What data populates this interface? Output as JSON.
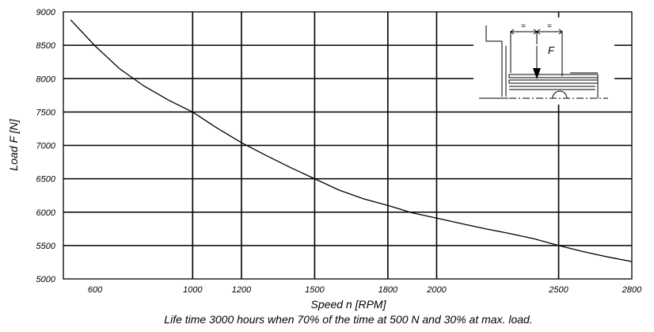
{
  "chart_data": {
    "type": "line",
    "xlabel": "Speed n [RPM]",
    "ylabel": "Load F [N]",
    "caption": "Life time 3000 hours when 70% of the time at 500 N and 30% at max. load.",
    "xlim": [
      470,
      2800
    ],
    "ylim": [
      5000,
      9000
    ],
    "x_ticks": [
      600,
      1000,
      1200,
      1500,
      1800,
      2000,
      2500,
      2800
    ],
    "x_tick_labels": [
      "600",
      "1000",
      "1200",
      "1500",
      "1800",
      "2000",
      "2500",
      "2800"
    ],
    "y_ticks": [
      5000,
      5500,
      6000,
      6500,
      7000,
      7500,
      8000,
      8500,
      9000
    ],
    "y_tick_labels": [
      "5000",
      "5500",
      "6000",
      "6500",
      "7000",
      "7500",
      "8000",
      "8500",
      "9000"
    ],
    "grid": true,
    "series": [
      {
        "x": [
          500,
          600,
          700,
          800,
          900,
          1000,
          1100,
          1200,
          1300,
          1400,
          1500,
          1600,
          1700,
          1800,
          1900,
          2000,
          2100,
          2200,
          2300,
          2400,
          2500,
          2600,
          2700,
          2800
        ],
        "values": [
          8880,
          8490,
          8150,
          7890,
          7680,
          7500,
          7260,
          7040,
          6850,
          6670,
          6500,
          6330,
          6200,
          6100,
          5990,
          5910,
          5830,
          5750,
          5680,
          5600,
          5500,
          5410,
          5330,
          5260
        ]
      }
    ],
    "inset": {
      "force_label": "F",
      "dimension_marks": [
        "=",
        "="
      ]
    }
  }
}
